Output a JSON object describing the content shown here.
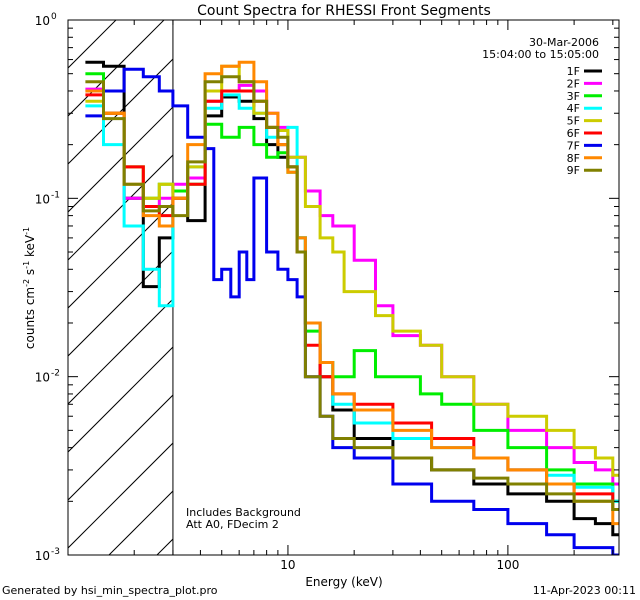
{
  "chart_data": {
    "type": "line",
    "title": "Count Spectra for RHESSI Front Segments",
    "xlabel": "Energy (keV)",
    "ylabel": "counts cm",
    "ylabel_sup1": "-2",
    "ylabel_mid": " s",
    "ylabel_sup2": "-1",
    "ylabel_mid2": " keV",
    "ylabel_sup3": "-1",
    "x_scale": "log",
    "y_scale": "log",
    "xlim": [
      1.0,
      320
    ],
    "ylim": [
      0.001,
      1.0
    ],
    "x_ticks": [
      {
        "value": 10,
        "label": "10"
      },
      {
        "value": 100,
        "label": "100"
      }
    ],
    "y_ticks": [
      {
        "value": 1.0,
        "label": "10",
        "exp": "0"
      },
      {
        "value": 0.1,
        "label": "10",
        "exp": "-1"
      },
      {
        "value": 0.01,
        "label": "10",
        "exp": "-2"
      },
      {
        "value": 0.001,
        "label": "10",
        "exp": "-3"
      }
    ],
    "date": "30-Mar-2006",
    "time_range": "15:04:00 to 15:05:00",
    "shaded_region": {
      "x_min": 1.0,
      "x_max": 3.0,
      "pattern": "diagonal hatch",
      "label": ""
    },
    "annotation_lines": [
      "Includes Background",
      "Att A0, FDecim 2"
    ],
    "legend_position": "top-right",
    "series": [
      {
        "name": "1F",
        "color": "#000000",
        "points": [
          [
            1.2,
            0.58
          ],
          [
            1.45,
            0.55
          ],
          [
            1.8,
            0.1
          ],
          [
            2.2,
            0.032
          ],
          [
            2.6,
            0.06
          ],
          [
            3.0,
            0.1
          ],
          [
            3.5,
            0.075
          ],
          [
            4.2,
            0.29
          ],
          [
            5.0,
            0.37
          ],
          [
            6.0,
            0.35
          ],
          [
            7.0,
            0.28
          ],
          [
            8.0,
            0.2
          ],
          [
            9.0,
            0.17
          ],
          [
            10.0,
            0.15
          ],
          [
            11.0,
            0.06
          ],
          [
            12.0,
            0.02
          ],
          [
            14.0,
            0.01
          ],
          [
            16.0,
            0.0065
          ],
          [
            20.0,
            0.0045
          ],
          [
            30.0,
            0.0035
          ],
          [
            45.0,
            0.003
          ],
          [
            70.0,
            0.0025
          ],
          [
            100.0,
            0.0022
          ],
          [
            150.0,
            0.002
          ],
          [
            200.0,
            0.0016
          ],
          [
            250.0,
            0.0015
          ],
          [
            300.0,
            0.0013
          ]
        ]
      },
      {
        "name": "2F",
        "color": "#ff00ff",
        "points": [
          [
            1.2,
            0.41
          ],
          [
            1.45,
            0.3
          ],
          [
            1.8,
            0.1
          ],
          [
            2.2,
            0.09
          ],
          [
            2.6,
            0.1
          ],
          [
            3.0,
            0.12
          ],
          [
            3.5,
            0.13
          ],
          [
            4.2,
            0.35
          ],
          [
            5.0,
            0.4
          ],
          [
            6.0,
            0.43
          ],
          [
            7.0,
            0.4
          ],
          [
            8.0,
            0.3
          ],
          [
            9.0,
            0.25
          ],
          [
            10.0,
            0.17
          ],
          [
            12.0,
            0.11
          ],
          [
            14.0,
            0.08
          ],
          [
            16.0,
            0.07
          ],
          [
            20.0,
            0.045
          ],
          [
            25.0,
            0.025
          ],
          [
            30.0,
            0.017
          ],
          [
            40.0,
            0.015
          ],
          [
            50.0,
            0.01
          ],
          [
            70.0,
            0.007
          ],
          [
            100.0,
            0.005
          ],
          [
            150.0,
            0.004
          ],
          [
            200.0,
            0.0033
          ],
          [
            250.0,
            0.003
          ],
          [
            300.0,
            0.0025
          ]
        ]
      },
      {
        "name": "3F",
        "color": "#00ee00",
        "points": [
          [
            1.2,
            0.5
          ],
          [
            1.45,
            0.3
          ],
          [
            1.8,
            0.15
          ],
          [
            2.2,
            0.1
          ],
          [
            2.6,
            0.12
          ],
          [
            3.0,
            0.11
          ],
          [
            3.5,
            0.12
          ],
          [
            4.2,
            0.26
          ],
          [
            5.0,
            0.22
          ],
          [
            6.0,
            0.25
          ],
          [
            7.0,
            0.2
          ],
          [
            8.0,
            0.17
          ],
          [
            9.0,
            0.18
          ],
          [
            10.0,
            0.14
          ],
          [
            11.0,
            0.06
          ],
          [
            12.0,
            0.018
          ],
          [
            14.0,
            0.012
          ],
          [
            16.0,
            0.01
          ],
          [
            20.0,
            0.014
          ],
          [
            25.0,
            0.01
          ],
          [
            30.0,
            0.01
          ],
          [
            40.0,
            0.008
          ],
          [
            50.0,
            0.007
          ],
          [
            70.0,
            0.005
          ],
          [
            100.0,
            0.004
          ],
          [
            150.0,
            0.003
          ],
          [
            200.0,
            0.0025
          ],
          [
            300.0,
            0.002
          ]
        ]
      },
      {
        "name": "4F",
        "color": "#00ffff",
        "points": [
          [
            1.2,
            0.33
          ],
          [
            1.45,
            0.2
          ],
          [
            1.8,
            0.07
          ],
          [
            2.2,
            0.04
          ],
          [
            2.6,
            0.025
          ],
          [
            3.0,
            0.1
          ],
          [
            3.5,
            0.15
          ],
          [
            4.2,
            0.32
          ],
          [
            5.0,
            0.38
          ],
          [
            6.0,
            0.32
          ],
          [
            7.0,
            0.3
          ],
          [
            8.0,
            0.22
          ],
          [
            9.0,
            0.2
          ],
          [
            10.0,
            0.25
          ],
          [
            11.0,
            0.06
          ],
          [
            12.0,
            0.02
          ],
          [
            14.0,
            0.012
          ],
          [
            16.0,
            0.007
          ],
          [
            20.0,
            0.0055
          ],
          [
            30.0,
            0.0045
          ],
          [
            45.0,
            0.004
          ],
          [
            70.0,
            0.0035
          ],
          [
            100.0,
            0.003
          ],
          [
            150.0,
            0.0028
          ],
          [
            200.0,
            0.0024
          ],
          [
            300.0,
            0.002
          ]
        ]
      },
      {
        "name": "5F",
        "color": "#cccc00",
        "points": [
          [
            1.2,
            0.35
          ],
          [
            1.45,
            0.3
          ],
          [
            1.8,
            0.15
          ],
          [
            2.2,
            0.1
          ],
          [
            2.6,
            0.12
          ],
          [
            3.0,
            0.1
          ],
          [
            3.5,
            0.15
          ],
          [
            4.2,
            0.4
          ],
          [
            5.0,
            0.55
          ],
          [
            6.0,
            0.45
          ],
          [
            7.0,
            0.3
          ],
          [
            8.0,
            0.25
          ],
          [
            9.0,
            0.24
          ],
          [
            10.0,
            0.17
          ],
          [
            12.0,
            0.09
          ],
          [
            14.0,
            0.06
          ],
          [
            16.0,
            0.05
          ],
          [
            18.0,
            0.03
          ],
          [
            20.0,
            0.03
          ],
          [
            25.0,
            0.022
          ],
          [
            30.0,
            0.018
          ],
          [
            40.0,
            0.015
          ],
          [
            50.0,
            0.01
          ],
          [
            70.0,
            0.007
          ],
          [
            100.0,
            0.006
          ],
          [
            150.0,
            0.005
          ],
          [
            200.0,
            0.004
          ],
          [
            250.0,
            0.0035
          ],
          [
            300.0,
            0.0028
          ]
        ]
      },
      {
        "name": "6F",
        "color": "#ff0000",
        "points": [
          [
            1.2,
            0.38
          ],
          [
            1.45,
            0.3
          ],
          [
            1.8,
            0.15
          ],
          [
            2.2,
            0.09
          ],
          [
            2.6,
            0.08
          ],
          [
            3.0,
            0.1
          ],
          [
            3.5,
            0.12
          ],
          [
            4.2,
            0.35
          ],
          [
            5.0,
            0.4
          ],
          [
            6.0,
            0.4
          ],
          [
            7.0,
            0.35
          ],
          [
            8.0,
            0.25
          ],
          [
            9.0,
            0.2
          ],
          [
            10.0,
            0.15
          ],
          [
            11.0,
            0.05
          ],
          [
            12.0,
            0.015
          ],
          [
            14.0,
            0.01
          ],
          [
            16.0,
            0.008
          ],
          [
            20.0,
            0.007
          ],
          [
            30.0,
            0.0055
          ],
          [
            45.0,
            0.0045
          ],
          [
            70.0,
            0.0035
          ],
          [
            100.0,
            0.003
          ],
          [
            150.0,
            0.0025
          ],
          [
            200.0,
            0.0022
          ],
          [
            300.0,
            0.0018
          ]
        ]
      },
      {
        "name": "7F",
        "color": "#0000ee",
        "points": [
          [
            1.2,
            0.29
          ],
          [
            1.45,
            0.4
          ],
          [
            1.8,
            0.53
          ],
          [
            2.2,
            0.48
          ],
          [
            2.6,
            0.4
          ],
          [
            3.0,
            0.33
          ],
          [
            3.5,
            0.22
          ],
          [
            4.2,
            0.19
          ],
          [
            4.6,
            0.035
          ],
          [
            5.0,
            0.04
          ],
          [
            5.5,
            0.028
          ],
          [
            6.0,
            0.05
          ],
          [
            6.5,
            0.035
          ],
          [
            7.0,
            0.13
          ],
          [
            8.0,
            0.05
          ],
          [
            9.0,
            0.04
          ],
          [
            10.0,
            0.035
          ],
          [
            11.0,
            0.028
          ],
          [
            12.0,
            0.01
          ],
          [
            14.0,
            0.006
          ],
          [
            16.0,
            0.004
          ],
          [
            20.0,
            0.0035
          ],
          [
            30.0,
            0.0025
          ],
          [
            45.0,
            0.002
          ],
          [
            70.0,
            0.0018
          ],
          [
            100.0,
            0.0015
          ],
          [
            150.0,
            0.0013
          ],
          [
            200.0,
            0.0011
          ],
          [
            300.0,
            0.001
          ]
        ]
      },
      {
        "name": "8F",
        "color": "#ff8800",
        "points": [
          [
            1.2,
            0.4
          ],
          [
            1.45,
            0.3
          ],
          [
            1.8,
            0.12
          ],
          [
            2.2,
            0.08
          ],
          [
            2.6,
            0.07
          ],
          [
            3.0,
            0.1
          ],
          [
            3.5,
            0.2
          ],
          [
            4.2,
            0.5
          ],
          [
            5.0,
            0.55
          ],
          [
            6.0,
            0.58
          ],
          [
            7.0,
            0.45
          ],
          [
            8.0,
            0.3
          ],
          [
            9.0,
            0.2
          ],
          [
            10.0,
            0.14
          ],
          [
            11.0,
            0.06
          ],
          [
            12.0,
            0.02
          ],
          [
            14.0,
            0.012
          ],
          [
            16.0,
            0.008
          ],
          [
            20.0,
            0.0065
          ],
          [
            30.0,
            0.005
          ],
          [
            45.0,
            0.004
          ],
          [
            70.0,
            0.0035
          ],
          [
            100.0,
            0.003
          ],
          [
            150.0,
            0.0025
          ],
          [
            200.0,
            0.002
          ],
          [
            300.0,
            0.0015
          ]
        ]
      },
      {
        "name": "9F",
        "color": "#808000",
        "points": [
          [
            1.2,
            0.45
          ],
          [
            1.45,
            0.28
          ],
          [
            1.8,
            0.12
          ],
          [
            2.2,
            0.085
          ],
          [
            2.6,
            0.09
          ],
          [
            3.0,
            0.08
          ],
          [
            3.5,
            0.16
          ],
          [
            4.2,
            0.45
          ],
          [
            5.0,
            0.48
          ],
          [
            6.0,
            0.45
          ],
          [
            7.0,
            0.35
          ],
          [
            8.0,
            0.25
          ],
          [
            9.0,
            0.22
          ],
          [
            10.0,
            0.15
          ],
          [
            11.0,
            0.05
          ],
          [
            12.0,
            0.01
          ],
          [
            14.0,
            0.006
          ],
          [
            16.0,
            0.0045
          ],
          [
            20.0,
            0.004
          ],
          [
            30.0,
            0.0035
          ],
          [
            45.0,
            0.003
          ],
          [
            70.0,
            0.0027
          ],
          [
            100.0,
            0.0025
          ],
          [
            150.0,
            0.0022
          ],
          [
            200.0,
            0.002
          ],
          [
            300.0,
            0.0018
          ]
        ]
      }
    ]
  },
  "footer": {
    "left": "Generated by hsi_min_spectra_plot.pro",
    "right": "11-Apr-2023 00:11"
  }
}
